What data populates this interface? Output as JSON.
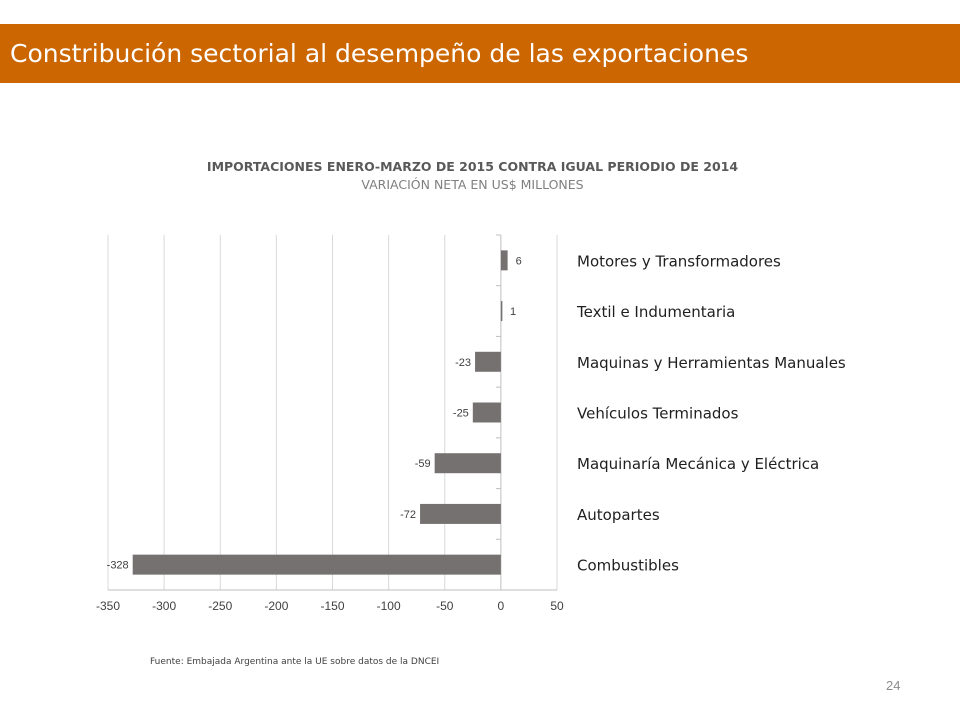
{
  "slide": {
    "title": "Constribución sectorial al desempeño de las exportaciones",
    "source_note": "Fuente: Embajada  Argentina ante la UE sobre datos de la DNCEI",
    "page_number": "24",
    "colors": {
      "title_bar": "#cc6600",
      "bar": "#767171"
    }
  },
  "chart_data": {
    "type": "bar",
    "orientation": "horizontal",
    "title": "IMPORTACIONES ENERO-MARZO DE 2015 CONTRA IGUAL PERIODIO DE 2014",
    "subtitle": "VARIACIÓN NETA EN US$ MILLONES",
    "categories": [
      "Motores y Transformadores",
      "Textil e Indumentaria",
      "Maquinas y Herramientas Manuales",
      "Vehículos Terminados",
      "Maquinaría Mecánica y Eléctrica",
      "Autopartes",
      "Combustibles"
    ],
    "values": [
      6,
      1,
      -23,
      -25,
      -59,
      -72,
      -328
    ],
    "xlim": [
      -350,
      50
    ],
    "x_ticks": [
      "-350",
      "-300",
      "-250",
      "-200",
      "-150",
      "-100",
      "-50",
      "0",
      "50"
    ],
    "grid": "vertical",
    "data_labels": true,
    "category_labels_position": "right"
  }
}
